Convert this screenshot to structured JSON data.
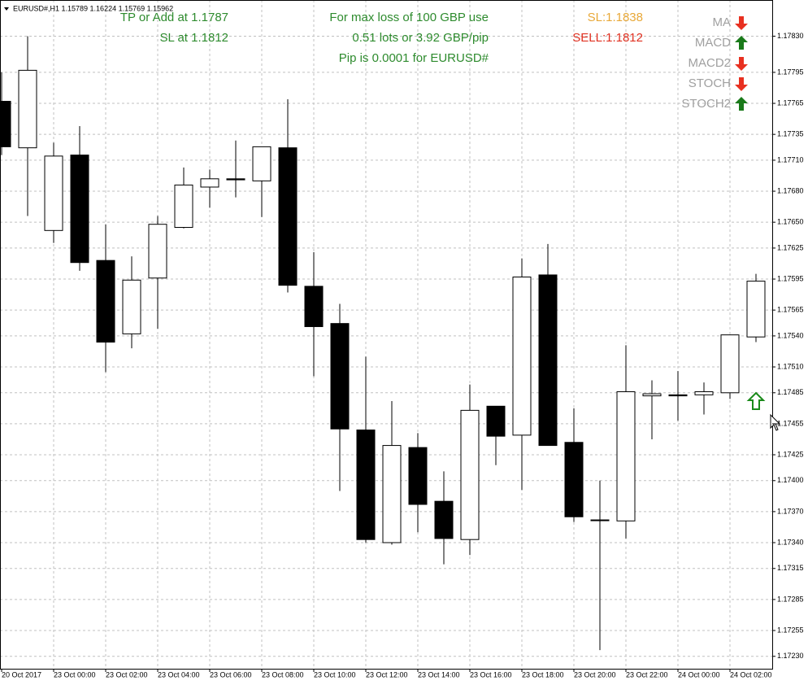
{
  "chart_data": {
    "type": "candlestick",
    "header": "EURUSD#,H1  1.15789 1.16224 1.15769 1.15962",
    "categories": [
      "20 Oct 2017",
      null,
      "23 Oct 00:00",
      null,
      "23 Oct 02:00",
      null,
      "23 Oct 04:00",
      null,
      "23 Oct 06:00",
      null,
      "23 Oct 08:00",
      null,
      "23 Oct 10:00",
      null,
      "23 Oct 12:00",
      null,
      "23 Oct 14:00",
      null,
      "23 Oct 16:00",
      null,
      "23 Oct 18:00",
      null,
      "23 Oct 20:00",
      null,
      "23 Oct 22:00",
      null,
      "24 Oct 00:00",
      null,
      "24 Oct 02:00",
      null
    ],
    "open": [
      1.17767,
      1.17722,
      1.17642,
      1.17715,
      1.17613,
      1.17542,
      1.17596,
      1.17645,
      1.17684,
      1.17692,
      1.1769,
      1.17722,
      1.17588,
      1.17552,
      1.17449,
      1.1734,
      1.17432,
      1.1738,
      1.17343,
      1.17472,
      1.17444,
      1.17599,
      1.17437,
      1.17362,
      1.17361,
      1.17482,
      1.17483,
      1.17483,
      1.17485,
      1.17539
    ],
    "high": [
      1.17795,
      1.1783,
      1.17727,
      1.17743,
      1.17648,
      1.17617,
      1.17656,
      1.17703,
      1.17701,
      1.17729,
      1.17723,
      1.17769,
      1.17621,
      1.17571,
      1.1752,
      1.17477,
      1.17446,
      1.17409,
      1.17493,
      1.17472,
      1.17615,
      1.17629,
      1.1747,
      1.174,
      1.17531,
      1.17497,
      1.17506,
      1.17495,
      1.17541,
      1.176
    ],
    "low": [
      1.17715,
      1.17656,
      1.1763,
      1.17603,
      1.17505,
      1.17528,
      1.17547,
      1.17644,
      1.17664,
      1.17674,
      1.17655,
      1.17582,
      1.17501,
      1.1739,
      1.1734,
      1.17338,
      1.1735,
      1.17319,
      1.17328,
      1.17415,
      1.17391,
      1.17434,
      1.1736,
      1.17236,
      1.17344,
      1.1744,
      1.17458,
      1.17464,
      1.17479,
      1.17534
    ],
    "close": [
      1.17723,
      1.17797,
      1.17714,
      1.17611,
      1.17534,
      1.17594,
      1.17648,
      1.17686,
      1.17692,
      1.17691,
      1.17723,
      1.17589,
      1.17549,
      1.1745,
      1.17343,
      1.17434,
      1.17377,
      1.17344,
      1.17468,
      1.17443,
      1.17597,
      1.17434,
      1.17365,
      1.17362,
      1.17486,
      1.17484,
      1.17482,
      1.17486,
      1.17541,
      1.17593
    ],
    "up_color": "#ffffff",
    "down_color": "#000000",
    "ylim": [
      1.17218,
      1.17865
    ],
    "yticks": [
      {
        "value": 1.1783,
        "label": "1.17830"
      },
      1.17795,
      1.17765,
      1.17735,
      {
        "value": 1.1771,
        "label": "1.17710"
      },
      {
        "value": 1.1768,
        "label": "1.17680"
      },
      {
        "value": 1.1765,
        "label": "1.17650"
      },
      1.17625,
      1.17595,
      1.17565,
      {
        "value": 1.1754,
        "label": "1.17540"
      },
      {
        "value": 1.1751,
        "label": "1.17510"
      },
      1.17485,
      1.17455,
      1.17425,
      {
        "value": 1.174,
        "label": "1.17400"
      },
      {
        "value": 1.1737,
        "label": "1.17370"
      },
      {
        "value": 1.1734,
        "label": "1.17340"
      },
      1.17315,
      1.17285,
      1.17255,
      {
        "value": 1.1723,
        "label": "1.17230"
      }
    ],
    "grid": true,
    "annotations": [
      {
        "text": "TP or Add at 1.1787",
        "color": "#2e8b2e"
      },
      {
        "text": "SL at 1.1812",
        "color": "#2e8b2e"
      },
      {
        "text": "For max loss of 100 GBP use",
        "color": "#2e8b2e"
      },
      {
        "text": "0.51 lots or 3.92 GBP/pip",
        "color": "#2e8b2e"
      },
      {
        "text": "Pip is 0.0001 for EURUSD#",
        "color": "#2e8b2e"
      },
      {
        "text": "SL:1.1838",
        "color": "#e8a838"
      },
      {
        "text": "SELL:1.1812",
        "color": "#e03020"
      }
    ],
    "indicators": [
      {
        "name": "MA",
        "signal": "down"
      },
      {
        "name": "MACD",
        "signal": "up"
      },
      {
        "name": "MACD2",
        "signal": "down"
      },
      {
        "name": "STOCH",
        "signal": "down"
      },
      {
        "name": "STOCH2",
        "signal": "up"
      }
    ]
  }
}
